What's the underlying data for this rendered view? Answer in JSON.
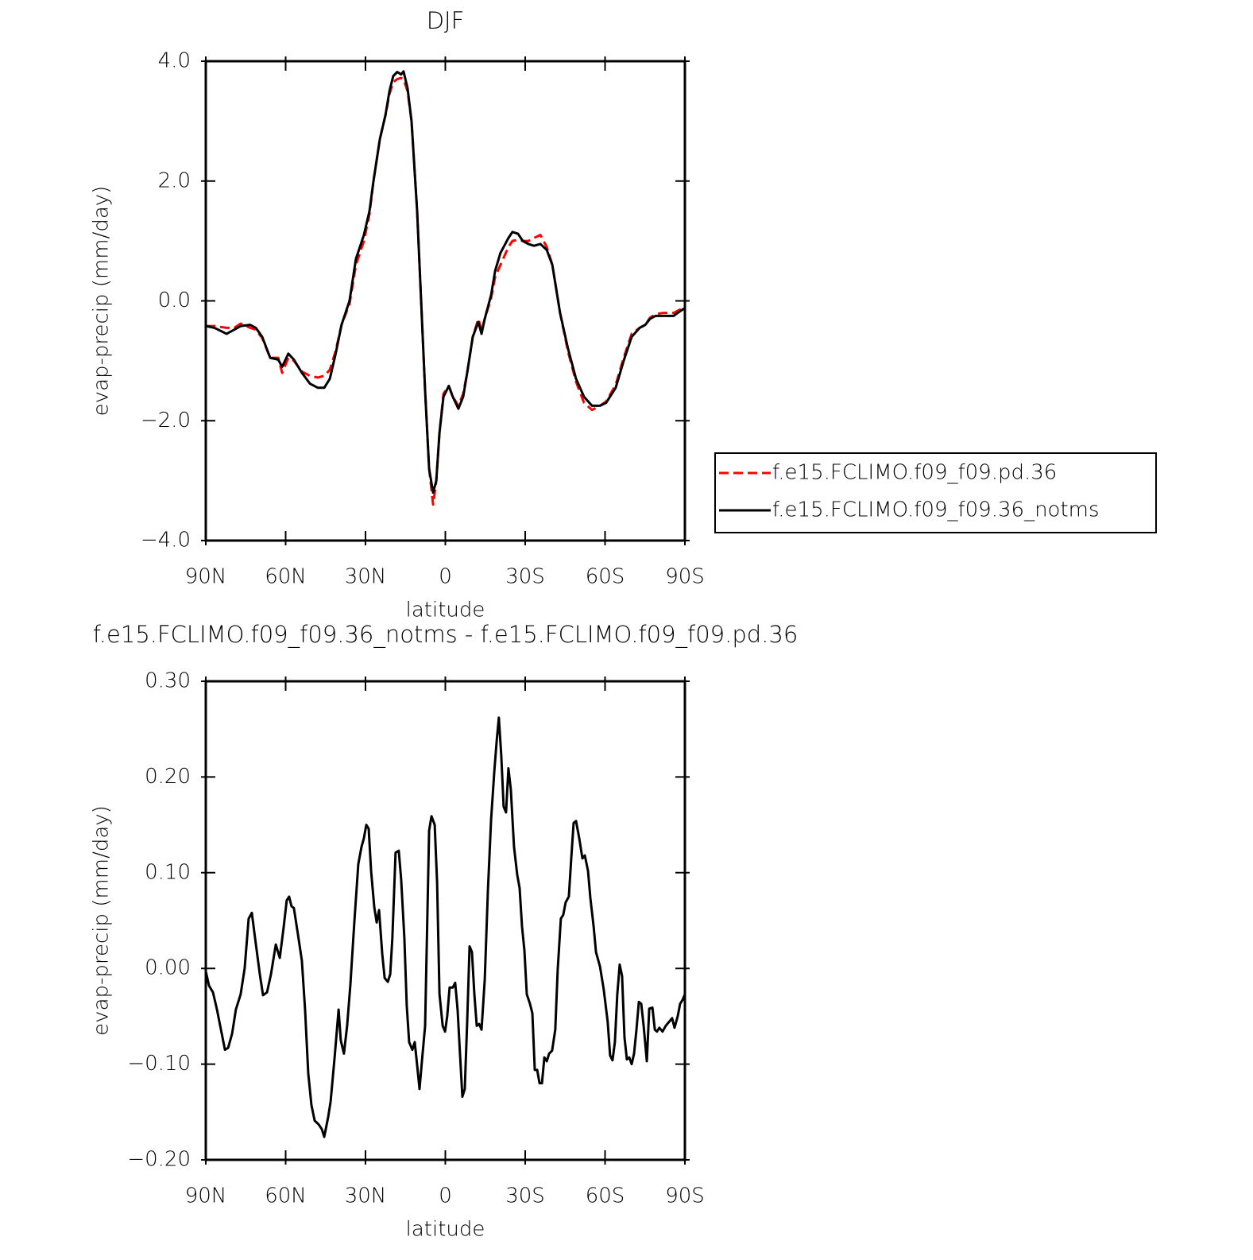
{
  "chart_data": [
    {
      "type": "line",
      "title": "DJF",
      "xlabel": "latitude",
      "ylabel": "evap-precip (mm/day)",
      "xlim": [
        90,
        -90
      ],
      "xticks": [
        {
          "value": 90,
          "label": "90N"
        },
        {
          "value": 60,
          "label": "60N"
        },
        {
          "value": 30,
          "label": "30N"
        },
        0,
        {
          "value": -30,
          "label": "30S"
        },
        {
          "value": -60,
          "label": "60S"
        },
        {
          "value": -90,
          "label": "90S"
        }
      ],
      "ylim": [
        -4,
        4
      ],
      "yticks": [
        {
          "value": -4,
          "label": "−4.0"
        },
        {
          "value": -2,
          "label": "−2.0"
        },
        {
          "value": 0,
          "label": "0.0"
        },
        {
          "value": 2,
          "label": "2.0"
        },
        {
          "value": 4,
          "label": "4.0"
        }
      ],
      "legend": "right",
      "x": [
        90.0,
        86.7,
        82.2,
        79.3,
        76.9,
        73.3,
        71.2,
        68.8,
        65.8,
        62.8,
        61.3,
        59.0,
        56.9,
        53.9,
        50.9,
        47.9,
        45.5,
        43.4,
        41.3,
        39.0,
        36.0,
        33.6,
        30.6,
        28.5,
        27.0,
        24.6,
        22.5,
        21.0,
        19.6,
        18.1,
        16.6,
        15.7,
        14.2,
        12.7,
        10.6,
        9.1,
        7.6,
        6.1,
        4.6,
        3.4,
        2.2,
        0.7,
        -1.3,
        -2.8,
        -4.9,
        -6.7,
        -8.2,
        -10.3,
        -12.4,
        -13.6,
        -14.8,
        -17.2,
        -18.7,
        -20.7,
        -23.7,
        -25.2,
        -27.3,
        -29.1,
        -31.2,
        -33.3,
        -35.7,
        -38.1,
        -40.2,
        -43.1,
        -46.1,
        -49.1,
        -52.1,
        -55.1,
        -58.1,
        -60.4,
        -64.0,
        -67.0,
        -70.0,
        -73.0,
        -75.1,
        -76.9,
        -79.0,
        -81.9,
        -85.8,
        -87.9,
        -90.0
      ],
      "series": [
        {
          "name": "f.e15.FCLIMO.f09_f09.pd.36",
          "color": "#ff0000",
          "dashed": true,
          "values": [
            -0.42,
            -0.42,
            -0.45,
            -0.45,
            -0.38,
            -0.45,
            -0.48,
            -0.62,
            -0.95,
            -0.95,
            -1.2,
            -0.95,
            -1.0,
            -1.18,
            -1.25,
            -1.28,
            -1.25,
            -1.15,
            -0.85,
            -0.4,
            -0.05,
            0.6,
            1.0,
            1.45,
            2.0,
            2.7,
            3.1,
            3.45,
            3.65,
            3.7,
            3.72,
            3.7,
            3.5,
            3.0,
            1.5,
            0.0,
            -1.5,
            -2.8,
            -3.4,
            -3.0,
            -2.2,
            -1.55,
            -1.42,
            -1.6,
            -1.75,
            -1.55,
            -1.2,
            -0.6,
            -0.3,
            -0.5,
            -0.3,
            0.05,
            0.4,
            0.6,
            0.9,
            1.0,
            1.02,
            1.0,
            1.0,
            1.05,
            1.1,
            0.9,
            0.6,
            -0.2,
            -0.85,
            -1.35,
            -1.7,
            -1.82,
            -1.75,
            -1.68,
            -1.4,
            -0.95,
            -0.55,
            -0.45,
            -0.4,
            -0.28,
            -0.22,
            -0.2,
            -0.2,
            -0.15,
            -0.12
          ]
        },
        {
          "name": "f.e15.FCLIMO.f09_f09.36_notms",
          "color": "#000000",
          "dashed": false,
          "values": [
            -0.42,
            -0.45,
            -0.55,
            -0.48,
            -0.42,
            -0.4,
            -0.45,
            -0.6,
            -0.95,
            -0.98,
            -1.1,
            -0.88,
            -0.98,
            -1.2,
            -1.38,
            -1.45,
            -1.45,
            -1.3,
            -0.9,
            -0.4,
            0.0,
            0.7,
            1.1,
            1.5,
            2.0,
            2.7,
            3.1,
            3.5,
            3.75,
            3.82,
            3.78,
            3.83,
            3.55,
            3.0,
            1.5,
            0.0,
            -1.5,
            -2.8,
            -3.2,
            -3.0,
            -2.2,
            -1.6,
            -1.42,
            -1.6,
            -1.8,
            -1.6,
            -1.2,
            -0.6,
            -0.35,
            -0.55,
            -0.3,
            0.1,
            0.5,
            0.8,
            1.05,
            1.15,
            1.12,
            1.0,
            0.95,
            0.92,
            0.95,
            0.85,
            0.6,
            -0.2,
            -0.8,
            -1.3,
            -1.6,
            -1.75,
            -1.75,
            -1.7,
            -1.45,
            -1.0,
            -0.6,
            -0.45,
            -0.4,
            -0.3,
            -0.25,
            -0.25,
            -0.25,
            -0.18,
            -0.12
          ]
        }
      ]
    },
    {
      "type": "line",
      "title": "f.e15.FCLIMO.f09_f09.36_notms - f.e15.FCLIMO.f09_f09.pd.36",
      "xlabel": "latitude",
      "ylabel": "evap-precip (mm/day)",
      "xlim": [
        90,
        -90
      ],
      "xticks": [
        {
          "value": 90,
          "label": "90N"
        },
        {
          "value": 60,
          "label": "60N"
        },
        {
          "value": 30,
          "label": "30N"
        },
        0,
        {
          "value": -30,
          "label": "30S"
        },
        {
          "value": -60,
          "label": "60S"
        },
        {
          "value": -90,
          "label": "90S"
        }
      ],
      "ylim": [
        -0.2,
        0.3
      ],
      "yticks": [
        {
          "value": -0.2,
          "label": "−0.20"
        },
        {
          "value": -0.1,
          "label": "−0.10"
        },
        {
          "value": 0,
          "label": "0.00"
        },
        {
          "value": 0.1,
          "label": "0.10"
        },
        {
          "value": 0.2,
          "label": "0.20"
        },
        {
          "value": 0.3,
          "label": "0.30"
        }
      ],
      "color": "#000000",
      "x": [
        90.0,
        88.8,
        87.3,
        85.8,
        84.3,
        82.8,
        81.6,
        80.1,
        78.7,
        76.9,
        75.4,
        73.9,
        72.7,
        71.5,
        69.7,
        68.5,
        67.0,
        65.5,
        63.7,
        62.2,
        60.7,
        59.6,
        58.7,
        57.8,
        56.9,
        55.4,
        53.9,
        52.7,
        51.5,
        50.3,
        49.1,
        47.6,
        46.4,
        45.5,
        44.0,
        43.1,
        41.6,
        40.1,
        39.3,
        38.1,
        36.9,
        35.7,
        34.2,
        32.7,
        31.5,
        30.6,
        29.7,
        28.8,
        27.9,
        26.7,
        25.8,
        24.9,
        23.7,
        22.8,
        21.6,
        20.7,
        19.9,
        18.7,
        17.5,
        16.6,
        15.4,
        14.5,
        13.6,
        12.4,
        11.5,
        10.6,
        9.7,
        8.8,
        7.6,
        6.1,
        5.2,
        4.0,
        3.1,
        2.2,
        1.0,
        0.1,
        -0.7,
        -1.6,
        -2.8,
        -3.7,
        -4.6,
        -5.5,
        -6.4,
        -7.3,
        -8.2,
        -9.1,
        -10.0,
        -10.9,
        -11.8,
        -12.7,
        -13.6,
        -14.8,
        -16.0,
        -17.2,
        -18.4,
        -19.3,
        -20.1,
        -21.0,
        -21.9,
        -22.8,
        -23.7,
        -24.6,
        -25.8,
        -27.0,
        -27.9,
        -28.8,
        -29.7,
        -30.6,
        -31.8,
        -32.7,
        -33.6,
        -34.5,
        -35.4,
        -36.3,
        -37.2,
        -38.1,
        -39.0,
        -40.1,
        -41.3,
        -42.2,
        -43.4,
        -44.3,
        -45.2,
        -46.4,
        -47.3,
        -48.2,
        -49.1,
        -50.3,
        -51.5,
        -52.4,
        -53.6,
        -54.5,
        -55.7,
        -56.6,
        -58.1,
        -59.5,
        -61.0,
        -61.9,
        -62.8,
        -63.7,
        -64.6,
        -65.5,
        -66.4,
        -67.3,
        -68.2,
        -69.1,
        -70.0,
        -70.9,
        -71.8,
        -72.7,
        -73.6,
        -74.5,
        -75.7,
        -76.6,
        -77.8,
        -78.7,
        -79.5,
        -80.4,
        -81.6,
        -82.8,
        -84.0,
        -85.2,
        -86.1,
        -87.3,
        -88.2,
        -89.1,
        -90.0
      ],
      "values": [
        -0.003,
        -0.018,
        -0.025,
        -0.043,
        -0.064,
        -0.085,
        -0.083,
        -0.068,
        -0.043,
        -0.027,
        0.0,
        0.052,
        0.058,
        0.032,
        -0.006,
        -0.028,
        -0.025,
        -0.006,
        0.025,
        0.011,
        0.044,
        0.071,
        0.075,
        0.065,
        0.063,
        0.036,
        0.008,
        -0.043,
        -0.11,
        -0.143,
        -0.159,
        -0.163,
        -0.168,
        -0.176,
        -0.155,
        -0.139,
        -0.093,
        -0.043,
        -0.075,
        -0.089,
        -0.06,
        -0.018,
        0.048,
        0.109,
        0.127,
        0.136,
        0.15,
        0.146,
        0.102,
        0.064,
        0.048,
        0.061,
        0.015,
        -0.01,
        -0.014,
        -0.006,
        0.032,
        0.121,
        0.123,
        0.093,
        0.032,
        -0.039,
        -0.077,
        -0.085,
        -0.077,
        -0.101,
        -0.126,
        -0.097,
        -0.06,
        0.144,
        0.159,
        0.15,
        0.09,
        -0.027,
        -0.06,
        -0.066,
        -0.05,
        -0.02,
        -0.02,
        -0.015,
        -0.043,
        -0.089,
        -0.134,
        -0.126,
        -0.056,
        0.023,
        0.017,
        -0.027,
        -0.06,
        -0.058,
        -0.064,
        -0.012,
        0.082,
        0.156,
        0.206,
        0.238,
        0.262,
        0.223,
        0.169,
        0.163,
        0.209,
        0.187,
        0.127,
        0.098,
        0.084,
        0.044,
        0.019,
        -0.027,
        -0.037,
        -0.047,
        -0.106,
        -0.106,
        -0.12,
        -0.12,
        -0.093,
        -0.097,
        -0.089,
        -0.086,
        -0.064,
        -0.002,
        0.052,
        0.056,
        0.069,
        0.075,
        0.115,
        0.152,
        0.154,
        0.136,
        0.115,
        0.118,
        0.102,
        0.073,
        0.044,
        0.017,
        0.002,
        -0.022,
        -0.056,
        -0.091,
        -0.096,
        -0.077,
        -0.027,
        0.004,
        -0.008,
        -0.072,
        -0.095,
        -0.093,
        -0.1,
        -0.089,
        -0.064,
        -0.035,
        -0.037,
        -0.06,
        -0.097,
        -0.042,
        -0.041,
        -0.064,
        -0.066,
        -0.062,
        -0.066,
        -0.06,
        -0.056,
        -0.052,
        -0.062,
        -0.05,
        -0.037,
        -0.033,
        -0.027
      ]
    }
  ]
}
